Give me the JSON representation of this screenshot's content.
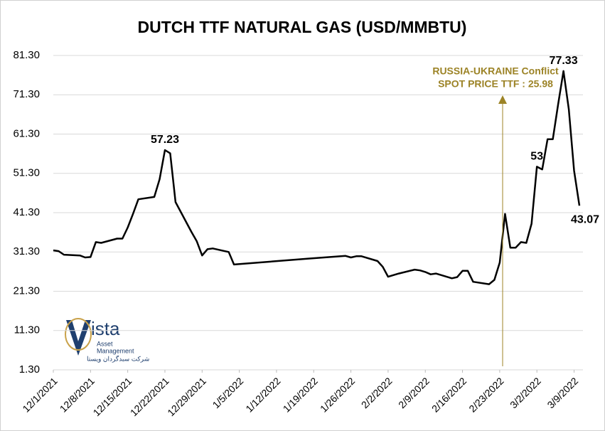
{
  "chart_data": {
    "type": "line",
    "title": "DUTCH TTF NATURAL GAS (USD/MMBTU)",
    "x": [
      "12/1/2021",
      "12/2/2021",
      "12/3/2021",
      "12/6/2021",
      "12/7/2021",
      "12/8/2021",
      "12/9/2021",
      "12/10/2021",
      "12/13/2021",
      "12/14/2021",
      "12/15/2021",
      "12/16/2021",
      "12/17/2021",
      "12/20/2021",
      "12/21/2021",
      "12/22/2021",
      "12/23/2021",
      "12/24/2021",
      "12/27/2021",
      "12/28/2021",
      "12/29/2021",
      "12/30/2021",
      "12/31/2021",
      "1/3/2022",
      "1/4/2022",
      "1/18/2022",
      "1/25/2022",
      "1/26/2022",
      "1/27/2022",
      "1/28/2022",
      "1/31/2022",
      "2/1/2022",
      "2/2/2022",
      "2/3/2022",
      "2/4/2022",
      "2/7/2022",
      "2/8/2022",
      "2/9/2022",
      "2/10/2022",
      "2/11/2022",
      "2/14/2022",
      "2/15/2022",
      "2/16/2022",
      "2/17/2022",
      "2/18/2022",
      "2/21/2022",
      "2/22/2022",
      "2/23/2022",
      "2/24/2022",
      "2/25/2022",
      "2/26/2022",
      "2/27/2022",
      "2/28/2022",
      "3/1/2022",
      "3/2/2022",
      "3/3/2022",
      "3/4/2022",
      "3/5/2022",
      "3/6/2022",
      "3/7/2022",
      "3/8/2022",
      "3/9/2022",
      "3/10/2022"
    ],
    "values": [
      31.7,
      31.5,
      30.6,
      30.4,
      29.9,
      30.0,
      33.8,
      33.6,
      34.7,
      34.7,
      37.5,
      41.0,
      44.7,
      45.3,
      49.8,
      57.23,
      56.4,
      44.0,
      36.4,
      34.0,
      30.4,
      32.0,
      32.2,
      31.3,
      28.1,
      29.6,
      30.3,
      29.9,
      30.2,
      30.2,
      29.0,
      27.5,
      25.0,
      25.4,
      25.8,
      26.8,
      26.6,
      26.2,
      25.6,
      25.8,
      24.6,
      24.9,
      26.5,
      26.5,
      23.7,
      23.1,
      24.2,
      28.6,
      41.0,
      32.4,
      32.4,
      33.8,
      33.6,
      38.5,
      53.0,
      52.3,
      60.0,
      60.0,
      68.9,
      77.33,
      67.6,
      52.0,
      43.07
    ],
    "color": "#000000",
    "xlim": [
      "12/1/2021",
      "3/10/2022"
    ],
    "xticks": [
      "12/1/2021",
      "12/8/2021",
      "12/15/2021",
      "12/22/2021",
      "12/29/2021",
      "1/5/2022",
      "1/12/2022",
      "1/19/2022",
      "1/26/2022",
      "2/2/2022",
      "2/9/2022",
      "2/16/2022",
      "2/23/2022",
      "3/2/2022",
      "3/9/2022"
    ],
    "ylim": [
      1.3,
      81.3
    ],
    "yticks": [
      {
        "value": 1.3,
        "label": "1.30"
      },
      {
        "value": 11.3,
        "label": "11.30"
      },
      {
        "value": 21.3,
        "label": "21.30"
      },
      {
        "value": 31.3,
        "label": "31.30"
      },
      {
        "value": 41.3,
        "label": "41.30"
      },
      {
        "value": 51.3,
        "label": "51.30"
      },
      {
        "value": 61.3,
        "label": "61.30"
      },
      {
        "value": 71.3,
        "label": "71.30"
      },
      {
        "value": 81.3,
        "label": "81.30"
      }
    ],
    "grid": true,
    "annotations": [
      "RUSSIA-UKRAINE Conflict",
      "SPOT PRICE TTF : 25.98"
    ],
    "annotation_color": "#9c8326"
  },
  "logo": {
    "name": "ista",
    "line1": "Asset",
    "line2": "Management",
    "persian": "شرکت سبدگردان ویستا"
  }
}
